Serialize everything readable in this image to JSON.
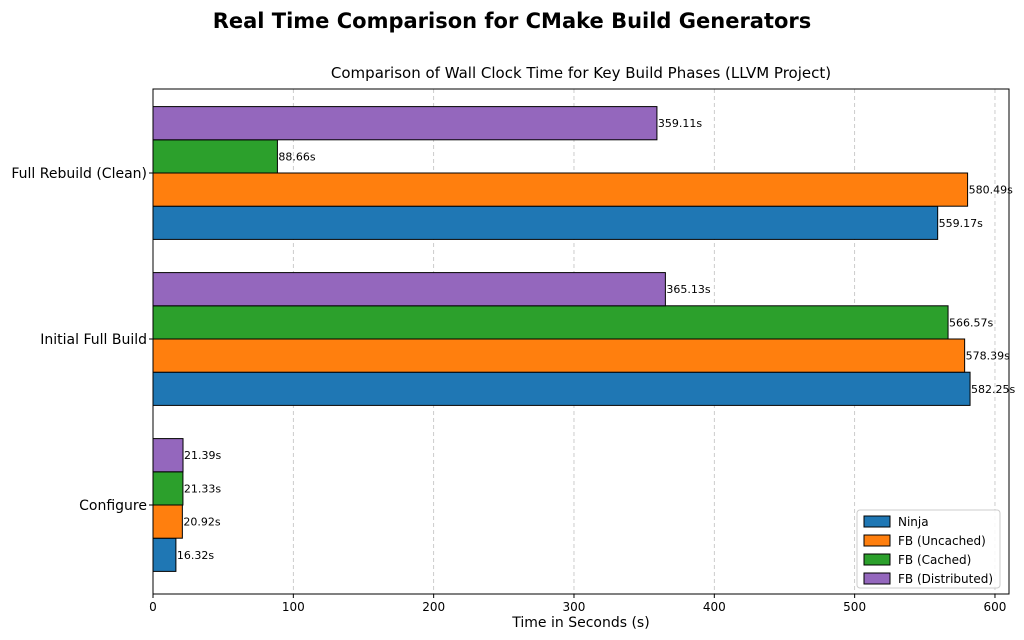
{
  "chart_data": {
    "type": "bar",
    "orientation": "horizontal",
    "suptitle": "Real Time Comparison for CMake Build Generators",
    "title": "Comparison of Wall Clock Time for Key Build Phases (LLVM Project)",
    "xlabel": "Time in Seconds (s)",
    "ylabel": "",
    "xlim": [
      0,
      610
    ],
    "xticks": [
      0,
      100,
      200,
      300,
      400,
      500,
      600
    ],
    "grid": "x-dashed",
    "legend_position": "bottom-right",
    "label_suffix": "s",
    "categories": [
      "Configure",
      "Initial Full Build",
      "Full Rebuild (Clean)"
    ],
    "series": [
      {
        "name": "Ninja",
        "color": "#1f77b4",
        "values": [
          16.32,
          582.25,
          559.17
        ]
      },
      {
        "name": "FB (Uncached)",
        "color": "#ff7f0e",
        "values": [
          20.92,
          578.39,
          580.49
        ]
      },
      {
        "name": "FB (Cached)",
        "color": "#2ca02c",
        "values": [
          21.33,
          566.57,
          88.66
        ]
      },
      {
        "name": "FB (Distributed)",
        "color": "#9467bd",
        "values": [
          21.39,
          365.13,
          359.11
        ]
      }
    ]
  }
}
